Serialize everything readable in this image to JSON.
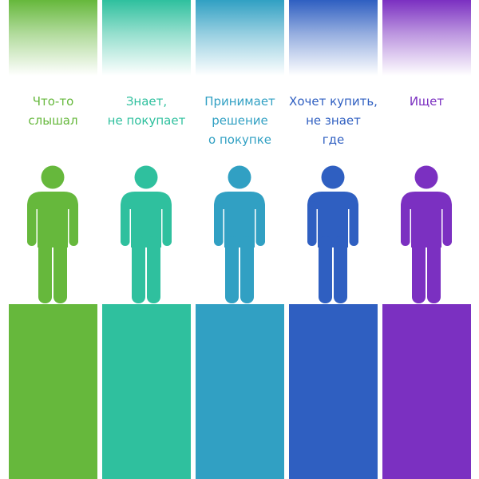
{
  "stages": [
    {
      "lines": [
        "Что-то",
        "слышал"
      ],
      "color": "#66b83c"
    },
    {
      "lines": [
        "Знает,",
        "не покупает"
      ],
      "color": "#2fc09e"
    },
    {
      "lines": [
        "Принимает",
        "решение",
        "о покупке"
      ],
      "color": "#31a0c3"
    },
    {
      "lines": [
        "Хочет купить,",
        "не знает",
        "где"
      ],
      "color": "#2f5fc1"
    },
    {
      "lines": [
        "Ищет"
      ],
      "color": "#7b30c1"
    }
  ],
  "icon": "person-icon"
}
